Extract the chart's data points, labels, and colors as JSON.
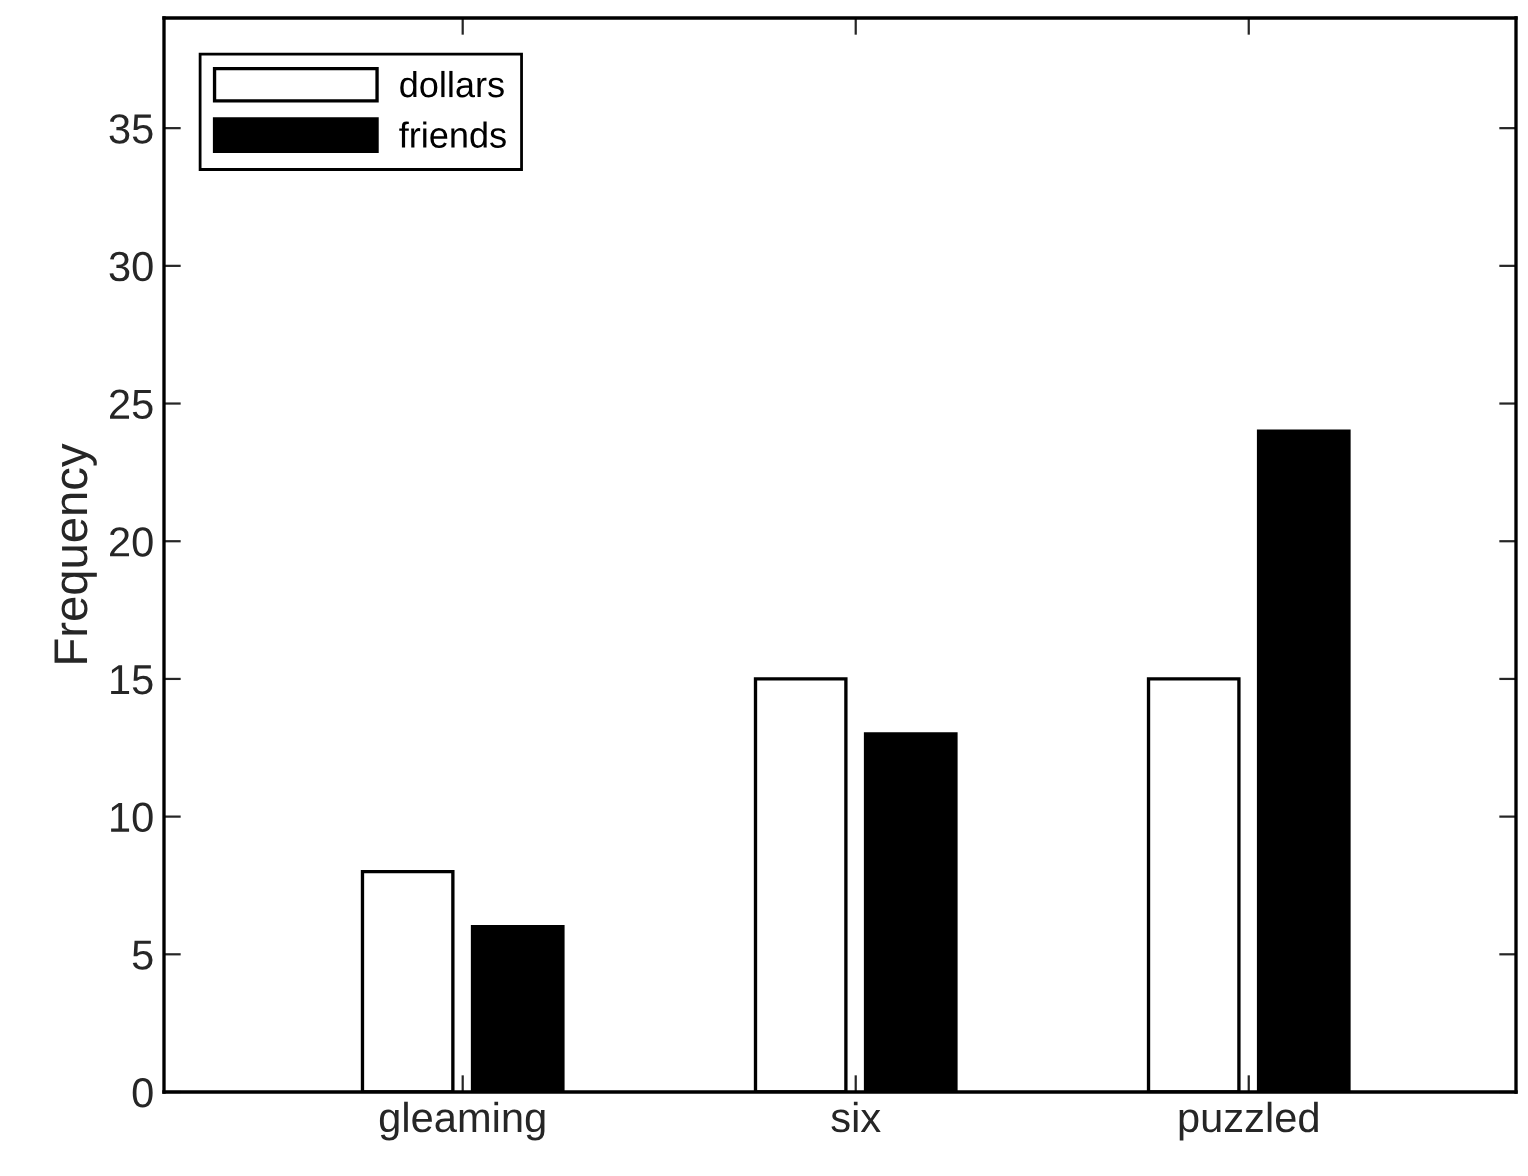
{
  "chart_data": {
    "type": "bar",
    "ylabel": "Frequency",
    "categories": [
      "gleaming",
      "six",
      "puzzled"
    ],
    "series": [
      {
        "name": "dollars",
        "color": "#ffffff",
        "values": [
          8,
          15,
          15
        ]
      },
      {
        "name": "friends",
        "color": "#000000",
        "values": [
          6,
          13,
          24
        ]
      }
    ],
    "ylim": [
      0,
      39
    ],
    "yticks": [
      0,
      5,
      10,
      15,
      20,
      25,
      30,
      35
    ],
    "grid": false,
    "legend": "top left"
  }
}
